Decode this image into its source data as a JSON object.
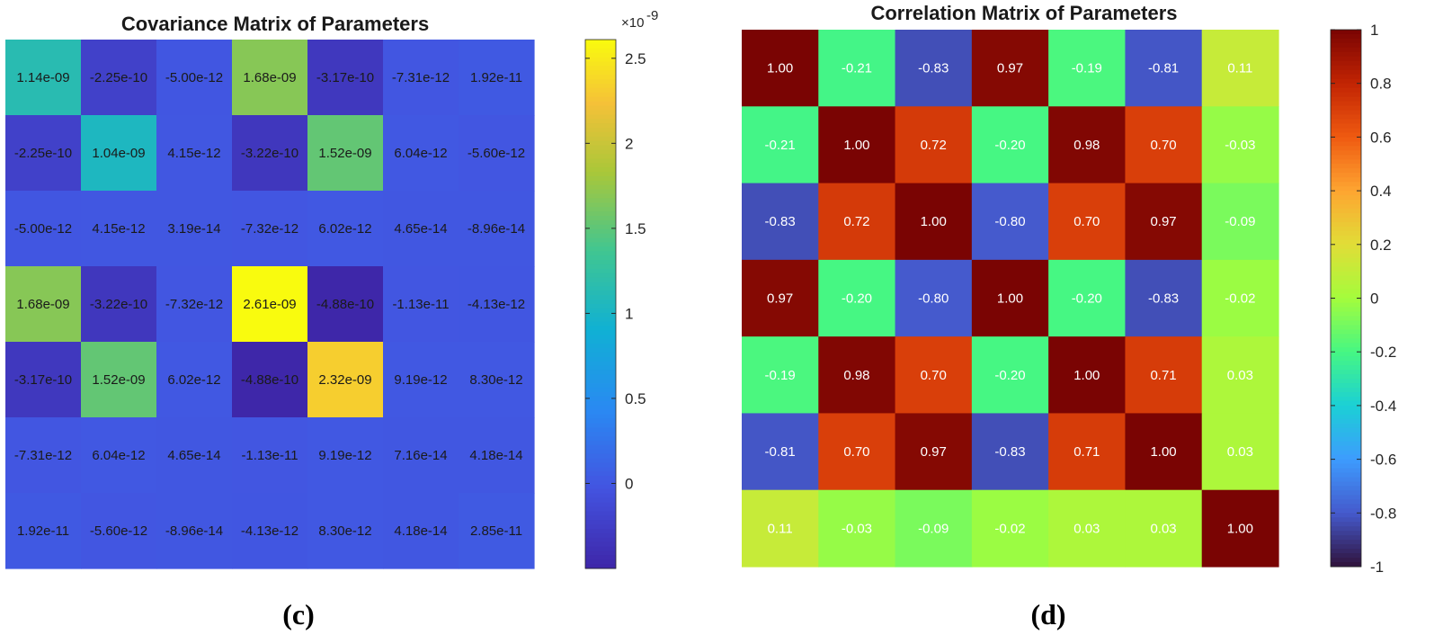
{
  "chart_data": [
    {
      "type": "heatmap",
      "title": "Covariance Matrix of Parameters",
      "caption": "(c)",
      "colormap": "parula",
      "colorbar": {
        "min": -0.5,
        "max": 2.61,
        "ticks": [
          0,
          0.5,
          1,
          1.5,
          2,
          2.5
        ],
        "tick_labels": [
          "0",
          "0.5",
          "1",
          "1.5",
          "2",
          "2.5"
        ],
        "exponent_label": "×10",
        "exponent": "-9"
      },
      "value_scale": 1e-09,
      "values": [
        [
          1.14e-09,
          -2.25e-10,
          -5e-12,
          1.68e-09,
          -3.17e-10,
          -7.31e-12,
          1.92e-11
        ],
        [
          -2.25e-10,
          1.04e-09,
          4.15e-12,
          -3.22e-10,
          1.52e-09,
          6.04e-12,
          -5.6e-12
        ],
        [
          -5e-12,
          4.15e-12,
          3.19e-14,
          -7.32e-12,
          6.02e-12,
          4.65e-14,
          -8.96e-14
        ],
        [
          1.68e-09,
          -3.22e-10,
          -7.32e-12,
          2.61e-09,
          -4.88e-10,
          -1.13e-11,
          -4.13e-12
        ],
        [
          -3.17e-10,
          1.52e-09,
          6.02e-12,
          -4.88e-10,
          2.32e-09,
          9.19e-12,
          8.3e-12
        ],
        [
          -7.31e-12,
          6.04e-12,
          4.65e-14,
          -1.13e-11,
          9.19e-12,
          7.16e-14,
          4.18e-14
        ],
        [
          1.92e-11,
          -5.6e-12,
          -8.96e-14,
          -4.13e-12,
          8.3e-12,
          4.18e-14,
          2.85e-11
        ]
      ],
      "labels": [
        [
          "1.14e-09",
          "-2.25e-10",
          "-5.00e-12",
          "1.68e-09",
          "-3.17e-10",
          "-7.31e-12",
          "1.92e-11"
        ],
        [
          "-2.25e-10",
          "1.04e-09",
          "4.15e-12",
          "-3.22e-10",
          "1.52e-09",
          "6.04e-12",
          "-5.60e-12"
        ],
        [
          "-5.00e-12",
          "4.15e-12",
          "3.19e-14",
          "-7.32e-12",
          "6.02e-12",
          "4.65e-14",
          "-8.96e-14"
        ],
        [
          "1.68e-09",
          "-3.22e-10",
          "-7.32e-12",
          "2.61e-09",
          "-4.88e-10",
          "-1.13e-11",
          "-4.13e-12"
        ],
        [
          "-3.17e-10",
          "1.52e-09",
          "6.02e-12",
          "-4.88e-10",
          "2.32e-09",
          "9.19e-12",
          "8.30e-12"
        ],
        [
          "-7.31e-12",
          "6.04e-12",
          "4.65e-14",
          "-1.13e-11",
          "9.19e-12",
          "7.16e-14",
          "4.18e-14"
        ],
        [
          "1.92e-11",
          "-5.60e-12",
          "-8.96e-14",
          "-4.13e-12",
          "8.30e-12",
          "4.18e-14",
          "2.85e-11"
        ]
      ],
      "text_color": "#1a1a1a"
    },
    {
      "type": "heatmap",
      "title": "Correlation Matrix of Parameters",
      "caption": "(d)",
      "colormap": "turbo",
      "colorbar": {
        "min": -1,
        "max": 1,
        "ticks": [
          -1,
          -0.8,
          -0.6,
          -0.4,
          -0.2,
          0,
          0.2,
          0.4,
          0.6,
          0.8,
          1
        ],
        "tick_labels": [
          "-1",
          "-0.8",
          "-0.6",
          "-0.4",
          "-0.2",
          "0",
          "0.2",
          "0.4",
          "0.6",
          "0.8",
          "1"
        ]
      },
      "value_scale": 1,
      "values": [
        [
          1.0,
          -0.21,
          -0.83,
          0.97,
          -0.19,
          -0.81,
          0.11
        ],
        [
          -0.21,
          1.0,
          0.72,
          -0.2,
          0.98,
          0.7,
          -0.03
        ],
        [
          -0.83,
          0.72,
          1.0,
          -0.8,
          0.7,
          0.97,
          -0.09
        ],
        [
          0.97,
          -0.2,
          -0.8,
          1.0,
          -0.2,
          -0.83,
          -0.02
        ],
        [
          -0.19,
          0.98,
          0.7,
          -0.2,
          1.0,
          0.71,
          0.03
        ],
        [
          -0.81,
          0.7,
          0.97,
          -0.83,
          0.71,
          1.0,
          0.03
        ],
        [
          0.11,
          -0.03,
          -0.09,
          -0.02,
          0.03,
          0.03,
          1.0
        ]
      ],
      "labels": [
        [
          "1.00",
          "-0.21",
          "-0.83",
          "0.97",
          "-0.19",
          "-0.81",
          "0.11"
        ],
        [
          "-0.21",
          "1.00",
          "0.72",
          "-0.20",
          "0.98",
          "0.70",
          "-0.03"
        ],
        [
          "-0.83",
          "0.72",
          "1.00",
          "-0.80",
          "0.70",
          "0.97",
          "-0.09"
        ],
        [
          "0.97",
          "-0.20",
          "-0.80",
          "1.00",
          "-0.20",
          "-0.83",
          "-0.02"
        ],
        [
          "-0.19",
          "0.98",
          "0.70",
          "-0.20",
          "1.00",
          "0.71",
          "0.03"
        ],
        [
          "-0.81",
          "0.70",
          "0.97",
          "-0.83",
          "0.71",
          "1.00",
          "0.03"
        ],
        [
          "0.11",
          "-0.03",
          "-0.09",
          "-0.02",
          "0.03",
          "0.03",
          "1.00"
        ]
      ],
      "text_color": "#ffffff"
    }
  ]
}
